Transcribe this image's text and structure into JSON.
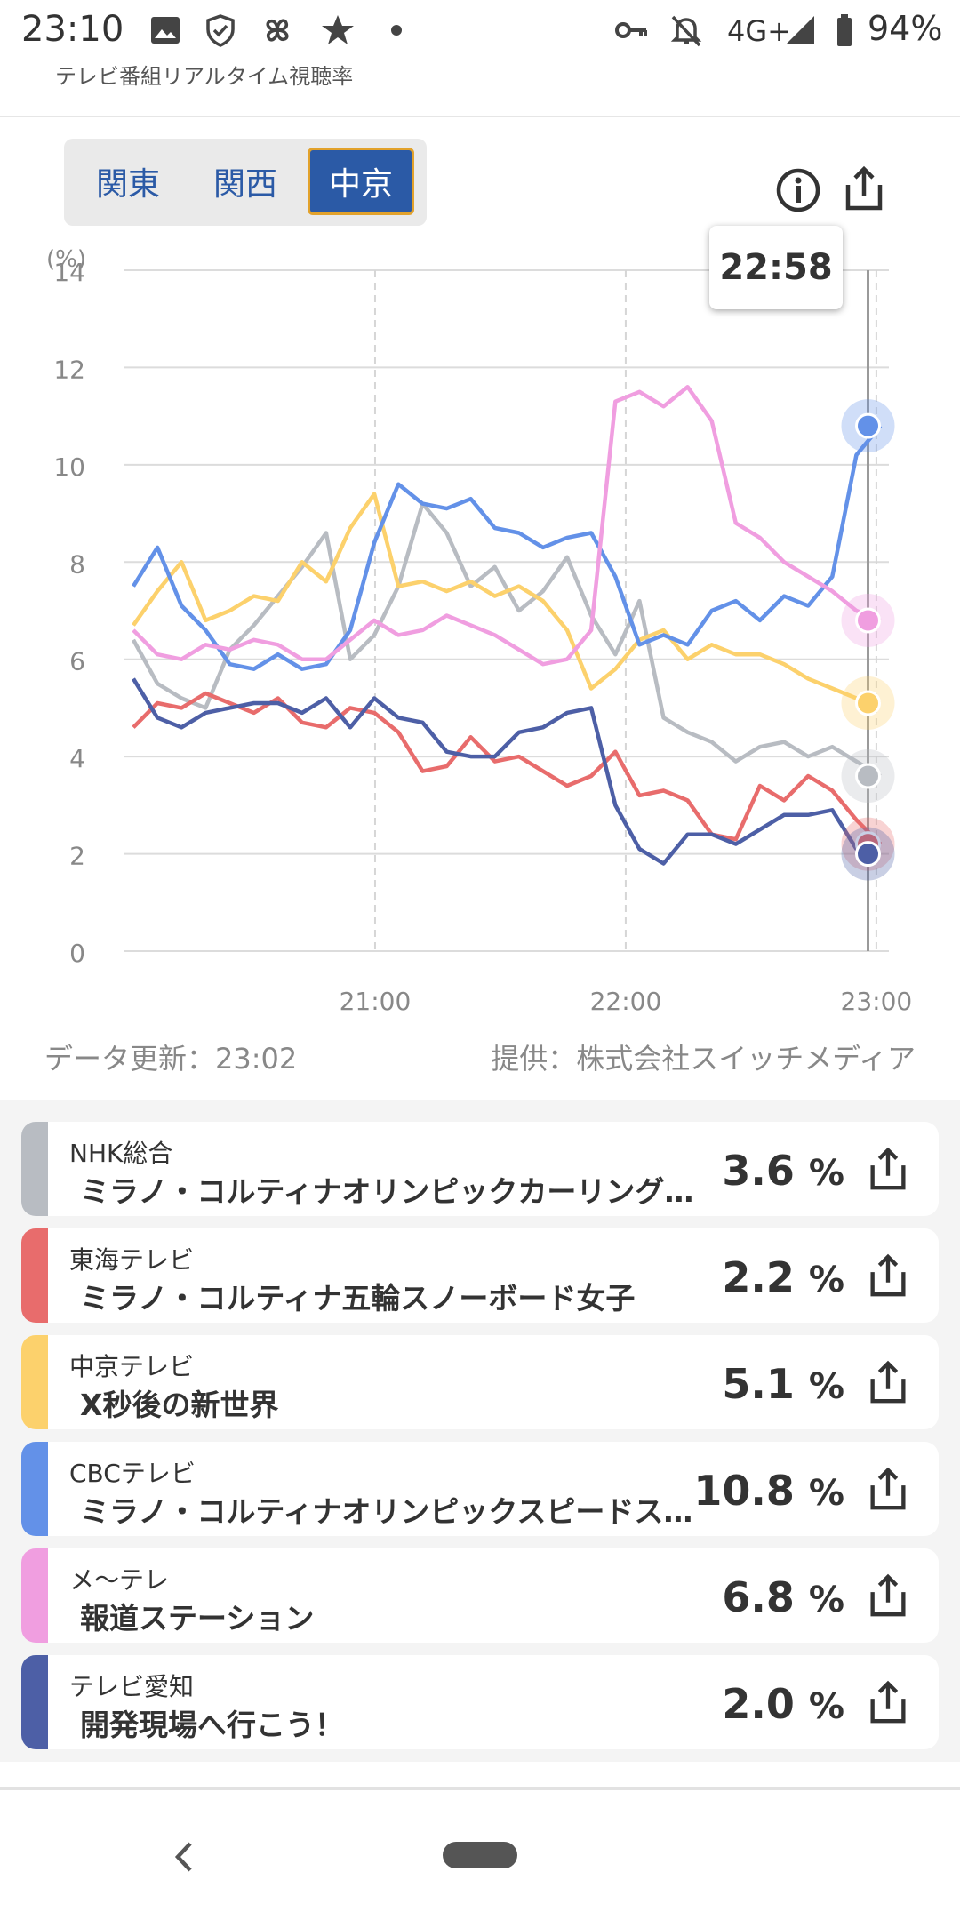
{
  "status_bar": {
    "time": "23:10",
    "network": "4G+",
    "battery": "94%",
    "icons": [
      "image-icon",
      "shield-icon",
      "pinwheel-icon",
      "star-icon",
      "dot-icon",
      "key-icon",
      "bell-off-icon",
      "signal-icon",
      "battery-icon"
    ]
  },
  "app": {
    "title": "テレビ番組リアルタイム視聴率"
  },
  "tabs": [
    {
      "label": "関東",
      "active": false
    },
    {
      "label": "関西",
      "active": false
    },
    {
      "label": "中京",
      "active": true
    }
  ],
  "tooltip_time": "22:58",
  "chart_data": {
    "type": "line",
    "ylabel": "(%)",
    "ylim": [
      0,
      14
    ],
    "yticks": [
      "0",
      "2",
      "4",
      "6",
      "8",
      "10",
      "12",
      "14"
    ],
    "xticks": [
      "21:00",
      "22:00",
      "23:00"
    ],
    "x_range": [
      "20:00",
      "23:03"
    ],
    "grid": true,
    "marker_time": "22:58",
    "series": [
      {
        "name": "NHK総合",
        "color": "#b8bcc2",
        "current": 3.6,
        "values": [
          6.4,
          5.5,
          5.2,
          5.0,
          6.2,
          6.7,
          7.3,
          7.9,
          8.6,
          6.0,
          6.5,
          7.5,
          9.2,
          8.6,
          7.5,
          7.9,
          7.0,
          7.4,
          8.1,
          6.9,
          6.1,
          7.2,
          4.8,
          4.5,
          4.3,
          3.9,
          4.2,
          4.3,
          4.0,
          4.2,
          3.9,
          3.6
        ]
      },
      {
        "name": "東海テレビ",
        "color": "#e86c6c",
        "current": 2.2,
        "values": [
          4.6,
          5.1,
          5.0,
          5.3,
          5.1,
          4.9,
          5.2,
          4.7,
          4.6,
          5.0,
          4.9,
          4.5,
          3.7,
          3.8,
          4.4,
          3.9,
          4.0,
          3.7,
          3.4,
          3.6,
          4.1,
          3.2,
          3.3,
          3.1,
          2.4,
          2.3,
          3.4,
          3.1,
          3.6,
          3.3,
          2.7,
          2.2
        ]
      },
      {
        "name": "中京テレビ",
        "color": "#fcd16c",
        "current": 5.1,
        "values": [
          6.7,
          7.4,
          8.0,
          6.8,
          7.0,
          7.3,
          7.2,
          8.0,
          7.6,
          8.7,
          9.4,
          7.5,
          7.6,
          7.4,
          7.6,
          7.3,
          7.5,
          7.2,
          6.6,
          5.4,
          5.8,
          6.4,
          6.6,
          6.0,
          6.3,
          6.1,
          6.1,
          5.9,
          5.6,
          5.4,
          5.2,
          5.1
        ]
      },
      {
        "name": "CBCテレビ",
        "color": "#6391e8",
        "current": 10.8,
        "values": [
          7.5,
          8.3,
          7.1,
          6.6,
          5.9,
          5.8,
          6.1,
          5.8,
          5.9,
          6.6,
          8.4,
          9.6,
          9.2,
          9.1,
          9.3,
          8.7,
          8.6,
          8.3,
          8.5,
          8.6,
          7.7,
          6.3,
          6.5,
          6.3,
          7.0,
          7.2,
          6.8,
          7.3,
          7.1,
          7.7,
          10.2,
          10.8
        ]
      },
      {
        "name": "メ～テレ",
        "color": "#f09ee0",
        "current": 6.8,
        "values": [
          6.6,
          6.1,
          6.0,
          6.3,
          6.2,
          6.4,
          6.3,
          6.0,
          6.0,
          6.4,
          6.8,
          6.5,
          6.6,
          6.9,
          6.7,
          6.5,
          6.2,
          5.9,
          6.0,
          6.6,
          11.3,
          11.5,
          11.2,
          11.6,
          10.9,
          8.8,
          8.5,
          8.0,
          7.7,
          7.4,
          7.0,
          6.8
        ]
      },
      {
        "name": "テレビ愛知",
        "color": "#4d5fa6",
        "current": 2.0,
        "values": [
          5.6,
          4.8,
          4.6,
          4.9,
          5.0,
          5.1,
          5.1,
          4.9,
          5.2,
          4.6,
          5.2,
          4.8,
          4.7,
          4.1,
          4.0,
          4.0,
          4.5,
          4.6,
          4.9,
          5.0,
          3.0,
          2.1,
          1.8,
          2.4,
          2.4,
          2.2,
          2.5,
          2.8,
          2.8,
          2.9,
          2.1,
          2.0
        ]
      }
    ]
  },
  "data_update": "データ更新：23:02",
  "provider": "提供：株式会社スイッチメディア",
  "channels": [
    {
      "channel": "NHK総合",
      "program": "ミラノ・コルティナオリンピックカーリング女子",
      "rate": "3.6",
      "unit": "%",
      "color": "#b8bcc2"
    },
    {
      "channel": "東海テレビ",
      "program": "ミラノ・コルティナ五輪スノーボード女子",
      "rate": "2.2",
      "unit": "%",
      "color": "#e86c6c"
    },
    {
      "channel": "中京テレビ",
      "program": "X秒後の新世界",
      "rate": "5.1",
      "unit": "%",
      "color": "#fcd16c"
    },
    {
      "channel": "CBCテレビ",
      "program": "ミラノ・コルティナオリンピックスピードスケート",
      "rate": "10.8",
      "unit": "%",
      "color": "#6391e8"
    },
    {
      "channel": "メ～テレ",
      "program": "報道ステーション",
      "rate": "6.8",
      "unit": "%",
      "color": "#f09ee0"
    },
    {
      "channel": "テレビ愛知",
      "program": "開発現場へ行こう！",
      "rate": "2.0",
      "unit": "%",
      "color": "#4d5fa6"
    }
  ],
  "nav": {
    "icons": [
      "back-icon",
      "home-pill-icon"
    ]
  }
}
